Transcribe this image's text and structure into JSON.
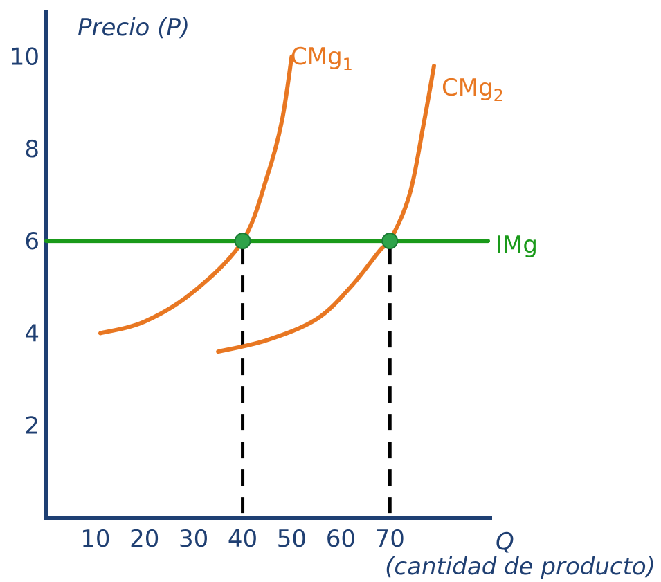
{
  "chart_data": {
    "type": "line",
    "title": "",
    "ylabel": "Precio (P)",
    "xlabel": {
      "symbol": "Q",
      "description": "(cantidad de producto)"
    },
    "x_ticks": [
      "10",
      "20",
      "30",
      "40",
      "50",
      "60",
      "70"
    ],
    "y_ticks": [
      "2",
      "4",
      "6",
      "8",
      "10"
    ],
    "xlim": [
      0,
      90
    ],
    "ylim": [
      0,
      11
    ],
    "series": [
      {
        "name": "CMg",
        "subscript": "1",
        "color": "#e87722",
        "points": [
          {
            "x": 11,
            "y": 4.0
          },
          {
            "x": 20,
            "y": 4.25
          },
          {
            "x": 30,
            "y": 4.9
          },
          {
            "x": 40,
            "y": 6.0
          },
          {
            "x": 45,
            "y": 7.4
          },
          {
            "x": 48,
            "y": 8.6
          },
          {
            "x": 50,
            "y": 10.0
          }
        ]
      },
      {
        "name": "CMg",
        "subscript": "2",
        "color": "#e87722",
        "points": [
          {
            "x": 35,
            "y": 3.6
          },
          {
            "x": 45,
            "y": 3.85
          },
          {
            "x": 55,
            "y": 4.3
          },
          {
            "x": 62,
            "y": 5.0
          },
          {
            "x": 68,
            "y": 5.8
          },
          {
            "x": 70,
            "y": 6.0
          },
          {
            "x": 74,
            "y": 7.0
          },
          {
            "x": 77,
            "y": 8.6
          },
          {
            "x": 79,
            "y": 9.8
          }
        ]
      },
      {
        "name": "IMg",
        "subscript": "",
        "color": "#1a9a1a",
        "points": [
          {
            "x": 0,
            "y": 6.0
          },
          {
            "x": 90,
            "y": 6.0
          }
        ]
      }
    ],
    "points": [
      {
        "x": 40,
        "y": 6.0
      },
      {
        "x": 70,
        "y": 6.0
      }
    ],
    "guides": [
      {
        "x": 40,
        "y": 6.0
      },
      {
        "x": 70,
        "y": 6.0
      }
    ],
    "grid": false,
    "legend": "none"
  },
  "styles": {
    "axis_color": "#1e3f73",
    "text_color": "#1f3f72",
    "point_color": "#2ea34a"
  }
}
